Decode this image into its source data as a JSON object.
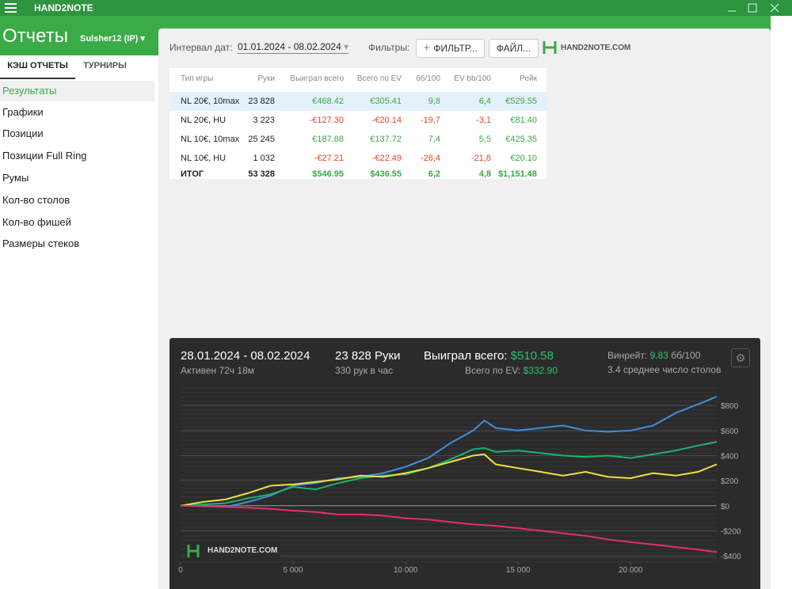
{
  "app": {
    "name": "HAND2NOTE",
    "section": "Отчеты",
    "player": "Sulsher12 (IP)"
  },
  "tabs": [
    "КЭШ ОТЧЕТЫ",
    "ТУРНИРЫ"
  ],
  "sidebar": [
    "Результаты",
    "Графики",
    "Позиции",
    "Позиции Full Ring",
    "Румы",
    "Кол-во столов",
    "Кол-во фишей",
    "Размеры стеков"
  ],
  "toolbar": {
    "date_label": "Интервал дат:",
    "date_range": "01.01.2024 - 08.02.2024",
    "filters_label": "Фильтры:",
    "filter_button": "ФИЛЬТР...",
    "file_button": "ФАЙЛ...",
    "logo": "HAND2NOTE.COM"
  },
  "table": {
    "columns": [
      "Тип игры",
      "Руки",
      "Выиграл всего",
      "Всего по EV",
      "бб/100",
      "EV bb/100",
      "Рейк"
    ],
    "rows": [
      [
        "NL 20€, 10max",
        "23 828",
        "€468.42",
        "€305.41",
        "9,8",
        "6,4",
        "€529.55"
      ],
      [
        "NL 20€, HU",
        "3 223",
        "-€127.30",
        "-€20.14",
        "-19,7",
        "-3,1",
        "€81.40"
      ],
      [
        "NL 10€, 10max",
        "25 245",
        "€187.88",
        "€137.72",
        "7,4",
        "5,5",
        "€425.35"
      ],
      [
        "NL 10€, HU",
        "1 032",
        "-€27.21",
        "-€22.49",
        "-26,4",
        "-21,8",
        "€20.10"
      ],
      [
        "ИТОГ",
        "53 328",
        "$546.95",
        "$436.55",
        "6,2",
        "4,8",
        "$1,151.48"
      ]
    ]
  },
  "panel": {
    "period": "28.01.2024 - 08.02.2024",
    "active": "Активен 72ч 18м",
    "hands": "23 828 Руки",
    "per_hour": "330 рук в час",
    "won_label": "Выиграл всего:",
    "won_value": "$510.58",
    "ev_label": "Всего по EV:",
    "ev_value": "$332.90",
    "winrate_label": "Винрейт:",
    "winrate_value": "9.83",
    "winrate_unit": "бб/100",
    "tables": "3.4 среднее число столов",
    "watermark": "HAND2NOTE.COM"
  },
  "chart_data": {
    "type": "line",
    "xlim": [
      0,
      23828
    ],
    "ylim": [
      -450,
      940
    ],
    "xticks": [
      0,
      {
        "value": 5000,
        "label": "5 000"
      },
      {
        "value": 10000,
        "label": "10 000"
      },
      {
        "value": 15000,
        "label": "15 000"
      },
      {
        "value": 20000,
        "label": "20 000"
      }
    ],
    "yticks": [
      {
        "value": 800,
        "label": "$800"
      },
      {
        "value": 600,
        "label": "$600"
      },
      {
        "value": 400,
        "label": "$400"
      },
      {
        "value": 200,
        "label": "$200"
      },
      {
        "value": 0,
        "label": "$0"
      },
      {
        "value": -200,
        "label": "-$200"
      },
      {
        "value": -400,
        "label": "-$400"
      }
    ],
    "grid": true,
    "x": [
      0,
      1000,
      2000,
      3000,
      4000,
      5000,
      6000,
      7000,
      8000,
      9000,
      10000,
      11000,
      12000,
      13000,
      13500,
      14000,
      15000,
      16000,
      17000,
      18000,
      19000,
      20000,
      21000,
      22000,
      23000,
      23828
    ],
    "series": [
      {
        "color": "#3b8fe0",
        "values": [
          0,
          0,
          -10,
          30,
          80,
          160,
          180,
          220,
          230,
          260,
          310,
          380,
          500,
          600,
          680,
          620,
          600,
          620,
          640,
          600,
          590,
          600,
          640,
          740,
          810,
          870
        ]
      },
      {
        "color": "#1db36b",
        "values": [
          0,
          10,
          20,
          60,
          90,
          150,
          130,
          180,
          220,
          240,
          250,
          300,
          370,
          450,
          460,
          430,
          440,
          420,
          400,
          390,
          400,
          380,
          410,
          440,
          480,
          510
        ]
      },
      {
        "color": "#f0e040",
        "values": [
          0,
          30,
          50,
          100,
          160,
          170,
          190,
          210,
          240,
          230,
          260,
          300,
          350,
          400,
          410,
          330,
          300,
          270,
          240,
          270,
          230,
          220,
          260,
          240,
          270,
          330
        ]
      },
      {
        "color": "#e0306a",
        "values": [
          0,
          -5,
          -10,
          -15,
          -25,
          -40,
          -50,
          -70,
          -70,
          -80,
          -100,
          -110,
          -130,
          -150,
          -155,
          -160,
          -180,
          -200,
          -220,
          -240,
          -270,
          -290,
          -310,
          -330,
          -350,
          -370
        ]
      }
    ]
  }
}
